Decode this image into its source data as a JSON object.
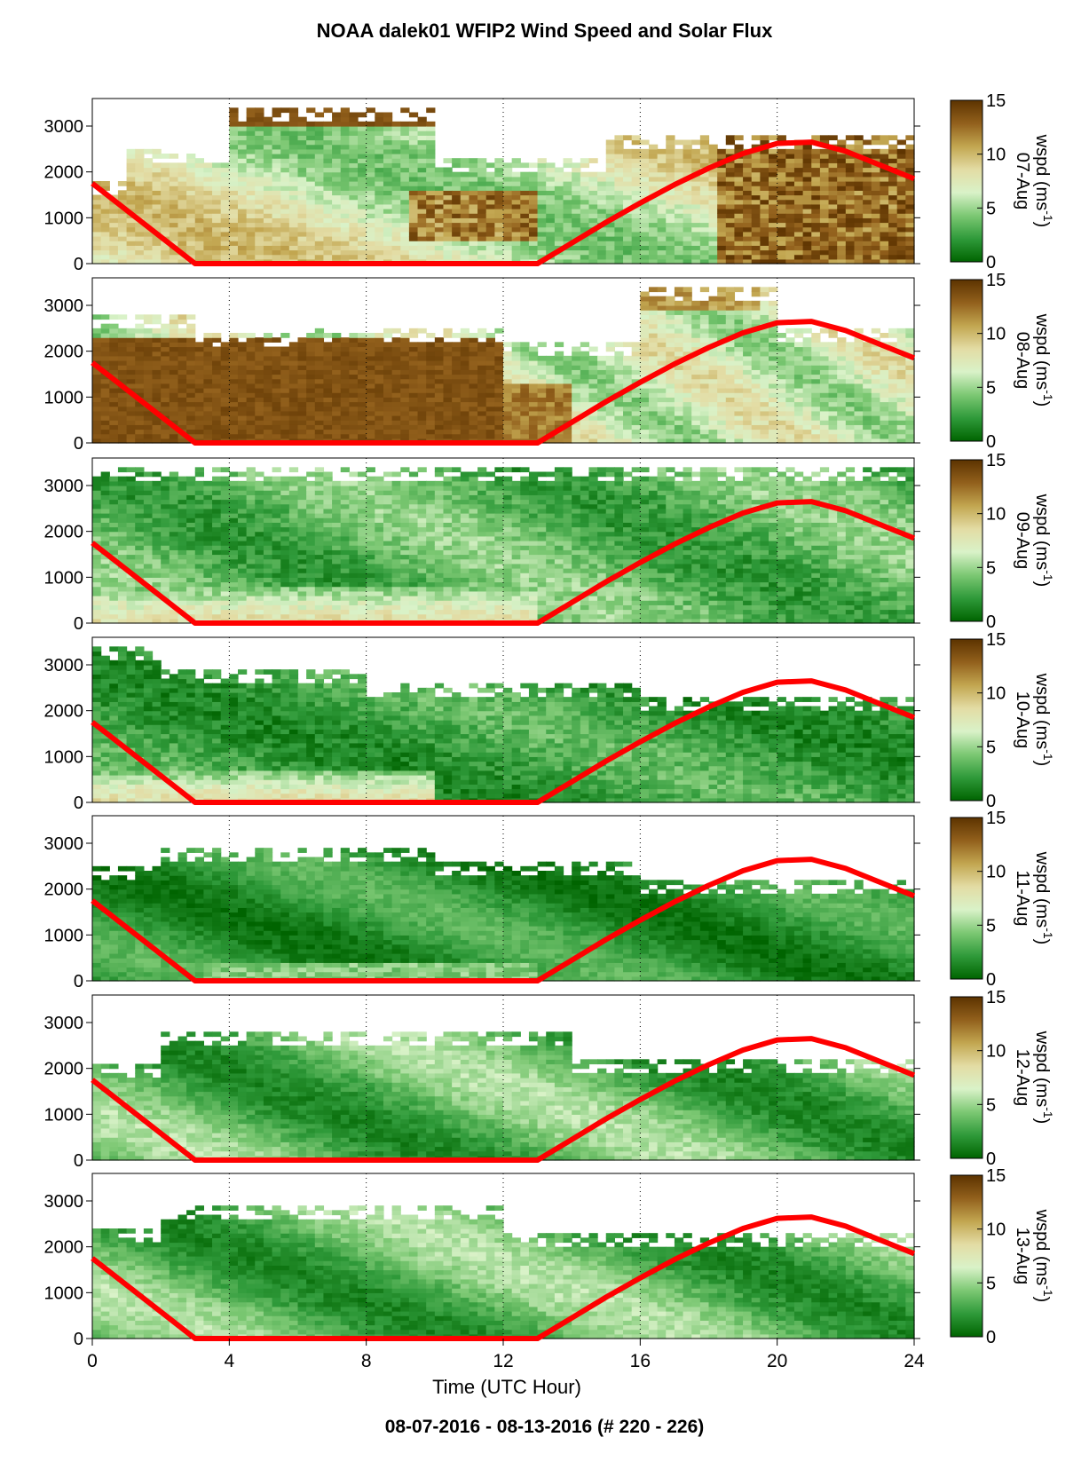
{
  "title": "NOAA dalek01 WFIP2 Wind Speed and Solar Flux",
  "footer": "08-07-2016 - 08-13-2016    (# 220 - 226)",
  "chart_data": {
    "type": "heatmap",
    "title": "NOAA dalek01 WFIP2 Wind Speed and Solar Flux",
    "xlabel": "Time (UTC Hour)",
    "ylabel": "",
    "xlim": [
      0,
      24
    ],
    "ylim": [
      0,
      3600
    ],
    "xticks": [
      0,
      4,
      8,
      12,
      16,
      20,
      24
    ],
    "yticks": [
      0,
      1000,
      2000,
      3000
    ],
    "grid": "vertical dotted lines at x = 4, 8, 12, 16, 20",
    "colorbar": {
      "label_prefix": "wspd (ms",
      "label_exp": "-1",
      "label_suffix": ")",
      "ticks": [
        0,
        5,
        10,
        15
      ],
      "range": [
        0,
        15
      ],
      "colors": [
        "#006400",
        "#2f9a3a",
        "#7cc873",
        "#d9f2c8",
        "#e3dca4",
        "#c2a650",
        "#92601c",
        "#5c3300"
      ]
    },
    "solar_flux_color": "#ff0000",
    "solar_flux_curve": {
      "x": [
        0,
        3,
        13,
        14,
        15,
        16,
        17,
        18,
        19,
        20,
        21,
        22,
        23,
        24
      ],
      "y": [
        1750,
        0,
        0,
        450,
        900,
        1320,
        1720,
        2080,
        2400,
        2620,
        2650,
        2450,
        2150,
        1850
      ]
    },
    "panels": [
      {
        "day": "07-Aug",
        "regime": "strong aloft, very strong near surface late day",
        "approx_wspd_mean": 11
      },
      {
        "day": "08-Aug",
        "regime": "very strong below 2500 m before 13 UTC, moderate after",
        "approx_wspd_mean": 10
      },
      {
        "day": "09-Aug",
        "regime": "moderate, low-level jet near 500 m early",
        "approx_wspd_mean": 5
      },
      {
        "day": "10-Aug",
        "regime": "light aloft, moderate jet near 300 m early",
        "approx_wspd_mean": 4
      },
      {
        "day": "11-Aug",
        "regime": "light winds, weak jet near 200 m",
        "approx_wspd_mean": 3
      },
      {
        "day": "12-Aug",
        "regime": "light to moderate",
        "approx_wspd_mean": 4
      },
      {
        "day": "13-Aug",
        "regime": "light to moderate",
        "approx_wspd_mean": 4
      }
    ]
  }
}
